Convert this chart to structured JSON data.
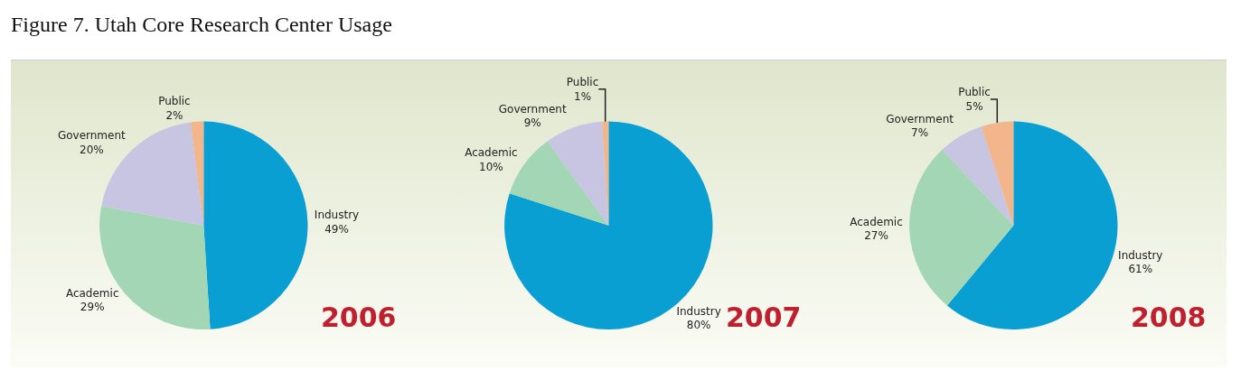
{
  "chart_data": [
    {
      "type": "pie",
      "title": "2006",
      "annotations": [
        "Figure 7. Utah Core Research Center Usage"
      ],
      "categories": [
        "Industry",
        "Academic",
        "Government",
        "Public"
      ],
      "values": [
        49,
        29,
        20,
        2
      ],
      "value_labels": [
        "49%",
        "29%",
        "20%",
        "2%"
      ],
      "colors": [
        "#0a9fd2",
        "#a3d6b4",
        "#c7c5e2",
        "#f2b58c"
      ]
    },
    {
      "type": "pie",
      "title": "2007",
      "categories": [
        "Industry",
        "Academic",
        "Government",
        "Public"
      ],
      "values": [
        80,
        10,
        9,
        1
      ],
      "value_labels": [
        "80%",
        "10%",
        "9%",
        "1%"
      ],
      "colors": [
        "#0a9fd2",
        "#a3d6b4",
        "#c7c5e2",
        "#f2b58c"
      ]
    },
    {
      "type": "pie",
      "title": "2008",
      "categories": [
        "Industry",
        "Academic",
        "Government",
        "Public"
      ],
      "values": [
        61,
        27,
        7,
        5
      ],
      "value_labels": [
        "61%",
        "27%",
        "7%",
        "5%"
      ],
      "colors": [
        "#0a9fd2",
        "#a3d6b4",
        "#c7c5e2",
        "#f2b58c"
      ]
    }
  ]
}
